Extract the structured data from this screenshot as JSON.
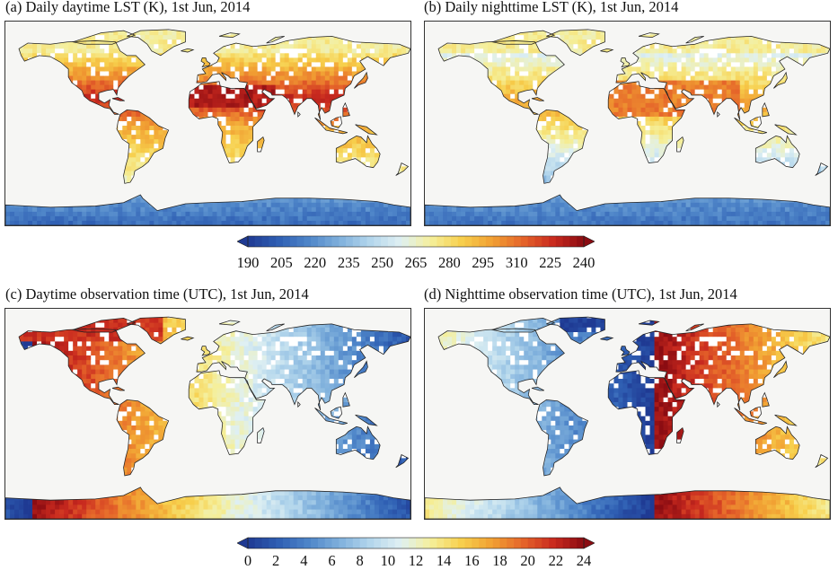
{
  "panels": [
    {
      "id": "a",
      "title": "(a) Daily daytime LST (K), 1st Jun,  2014",
      "variable": "day_lst"
    },
    {
      "id": "b",
      "title": "(b) Daily nighttime LST (K), 1st Jun, 2014",
      "variable": "night_lst"
    },
    {
      "id": "c",
      "title": "(c) Daytime observation time (UTC),  1st Jun,  2014",
      "variable": "day_time"
    },
    {
      "id": "d",
      "title": "(d) Nighttime observation time (UTC),  1st Jun,  2014",
      "variable": "night_time"
    }
  ],
  "colorbars": [
    {
      "id": "lst",
      "ticks": [
        "190",
        "205",
        "220",
        "235",
        "250",
        "265",
        "280",
        "295",
        "310",
        "225",
        "240"
      ],
      "extend": "both"
    },
    {
      "id": "utc",
      "ticks": [
        "0",
        "2",
        "4",
        "6",
        "8",
        "10",
        "12",
        "14",
        "16",
        "18",
        "20",
        "22",
        "24"
      ],
      "extend": "both"
    }
  ],
  "colors": {
    "ramp": [
      "#1f3a93",
      "#2f5fb3",
      "#4f86c9",
      "#7fb0dc",
      "#b3d6ec",
      "#dff0f3",
      "#f5ef9a",
      "#f7cf4c",
      "#f1a033",
      "#e5652a",
      "#c92a1f",
      "#8b0c12"
    ],
    "ocean": "#f6f6f4",
    "coast": "#222222"
  }
}
